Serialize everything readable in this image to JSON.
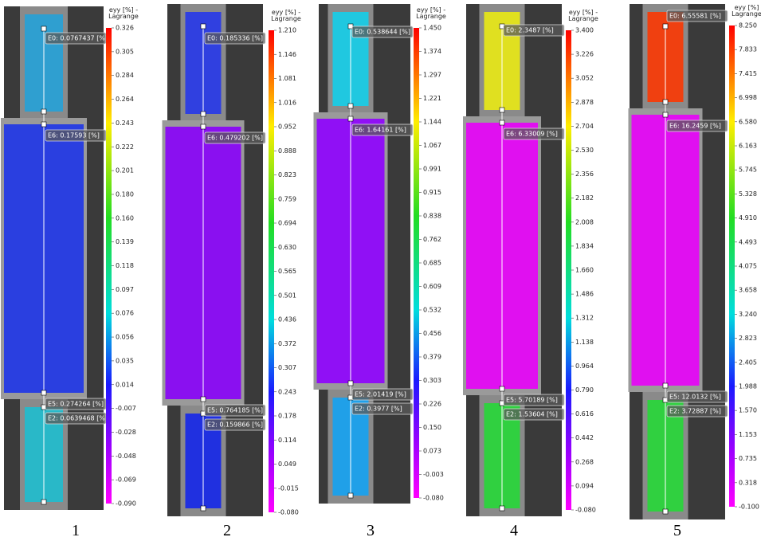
{
  "panels": [
    {
      "number": "1",
      "colorbar_title": [
        "eyy [%] -",
        "Lagrange"
      ],
      "ticks": [
        "0.326",
        "0.305",
        "0.284",
        "0.264",
        "0.243",
        "0.222",
        "0.201",
        "0.180",
        "0.160",
        "0.139",
        "0.118",
        "0.097",
        "0.076",
        "0.056",
        "0.035",
        "0.014",
        "-0.007",
        "-0.028",
        "-0.048",
        "-0.069",
        "-0.090"
      ],
      "tags": [
        "E0: 0.0767437 [%]",
        "E6: 0.17593 [%]",
        "E5: 0.274264 [%]",
        "E2: 0.0639468 [%]"
      ]
    },
    {
      "number": "2",
      "colorbar_title": [
        "eyy [%] -",
        "Lagrange"
      ],
      "ticks": [
        "1.210",
        "1.146",
        "1.081",
        "1.016",
        "0.952",
        "0.888",
        "0.823",
        "0.759",
        "0.694",
        "0.630",
        "0.565",
        "0.501",
        "0.436",
        "0.372",
        "0.307",
        "0.243",
        "0.178",
        "0.114",
        "0.049",
        "-0.015",
        "-0.080"
      ],
      "tags": [
        "E0: 0.185336 [%]",
        "E6: 0.479202 [%]",
        "E5: 0.764185 [%]",
        "E2: 0.159866 [%]"
      ]
    },
    {
      "number": "3",
      "colorbar_title": [
        "eyy [%] -",
        "Lagrange"
      ],
      "ticks": [
        "1.450",
        "1.374",
        "1.297",
        "1.221",
        "1.144",
        "1.067",
        "0.991",
        "0.915",
        "0.838",
        "0.762",
        "0.685",
        "0.609",
        "0.532",
        "0.456",
        "0.379",
        "0.303",
        "0.226",
        "0.150",
        "0.073",
        "-0.003",
        "-0.080"
      ],
      "tags": [
        "E0: 0.538644 [%]",
        "E6: 1.64161 [%]",
        "E5: 2.01419 [%]",
        "E2: 0.3977 [%]"
      ]
    },
    {
      "number": "4",
      "colorbar_title": [
        "eyy [%] -",
        "Lagrange"
      ],
      "ticks": [
        "3.400",
        "3.226",
        "3.052",
        "2.878",
        "2.704",
        "2.530",
        "2.356",
        "2.182",
        "2.008",
        "1.834",
        "1.660",
        "1.486",
        "1.312",
        "1.138",
        "0.964",
        "0.790",
        "0.616",
        "0.442",
        "0.268",
        "0.094",
        "-0.080"
      ],
      "tags": [
        "E0: 2.3487 [%]",
        "E6: 6.33009 [%]",
        "E5: 5.70189 [%]",
        "E2: 1.53604 [%]"
      ]
    },
    {
      "number": "5",
      "colorbar_title": [
        "eyy [%]",
        "Lagrange"
      ],
      "ticks": [
        "8.250",
        "7.833",
        "7.415",
        "6.998",
        "6.580",
        "6.163",
        "5.745",
        "5.328",
        "4.910",
        "4.493",
        "4.075",
        "3.658",
        "3.240",
        "2.823",
        "2.405",
        "1.988",
        "1.570",
        "1.153",
        "0.735",
        "0.318",
        "-0.100"
      ],
      "tags": [
        "E0: 6.55581 [%]",
        "E6: 16.2459 [%]",
        "E5: 12.0132 [%]",
        "E2: 3.72887 [%]"
      ]
    }
  ]
}
